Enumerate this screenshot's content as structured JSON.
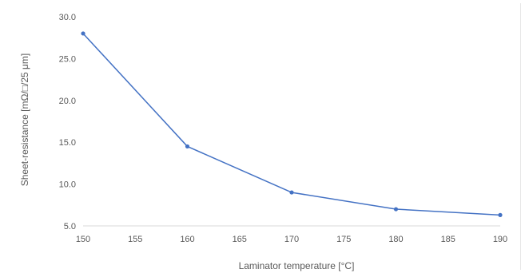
{
  "chart_data": {
    "type": "line",
    "title": "",
    "xlabel": "Laminator temperature [°C]",
    "ylabel": "Sheet-resistance [mΩ/□/25 μm]",
    "x": [
      150,
      160,
      170,
      180,
      190
    ],
    "series": [
      {
        "values": [
          28.0,
          14.5,
          9.0,
          7.0,
          6.3
        ],
        "color": "#4472c4"
      }
    ],
    "xlim": [
      150,
      190
    ],
    "ylim": [
      5.0,
      30.0
    ],
    "xticks": [
      150,
      155,
      160,
      165,
      170,
      175,
      180,
      185,
      190
    ],
    "xtick_labels": [
      "150",
      "155",
      "160",
      "165",
      "170",
      "175",
      "180",
      "185",
      "190"
    ],
    "yticks": [
      5,
      10,
      15,
      20,
      25,
      30
    ],
    "ytick_labels": [
      "5.0",
      "10.0",
      "15.0",
      "20.0",
      "25.0",
      "30.0"
    ],
    "grid": false,
    "legend": "none",
    "colors": {
      "line": "#4472c4",
      "axis": "#d9d9d9",
      "text": "#595959"
    }
  }
}
